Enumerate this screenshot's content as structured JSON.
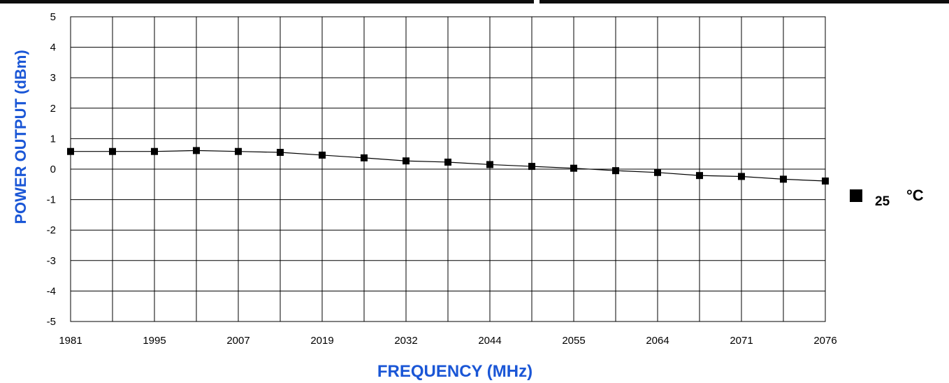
{
  "chart_data": {
    "type": "line",
    "title": "",
    "xlabel": "FREQUENCY (MHz)",
    "ylabel": "POWER OUTPUT (dBm)",
    "ylim": [
      -5,
      5
    ],
    "y_ticks": [
      "5",
      "4",
      "3",
      "2",
      "1",
      "0",
      "-1",
      "-2",
      "-3",
      "-4",
      "-5"
    ],
    "x_tick_labels": [
      "1981",
      "",
      "1995",
      "",
      "2007",
      "",
      "2019",
      "",
      "2032",
      "",
      "2044",
      "",
      "2055",
      "",
      "2064",
      "",
      "2071",
      "",
      "2076"
    ],
    "grid": true,
    "legend_position": "right",
    "series": [
      {
        "name": "25 °C",
        "legend_value": "25",
        "legend_unit": "°C",
        "values": [
          0.58,
          0.58,
          0.58,
          0.61,
          0.58,
          0.55,
          0.46,
          0.37,
          0.27,
          0.23,
          0.15,
          0.09,
          0.03,
          -0.05,
          -0.11,
          -0.21,
          -0.24,
          -0.33,
          -0.39
        ]
      }
    ]
  }
}
